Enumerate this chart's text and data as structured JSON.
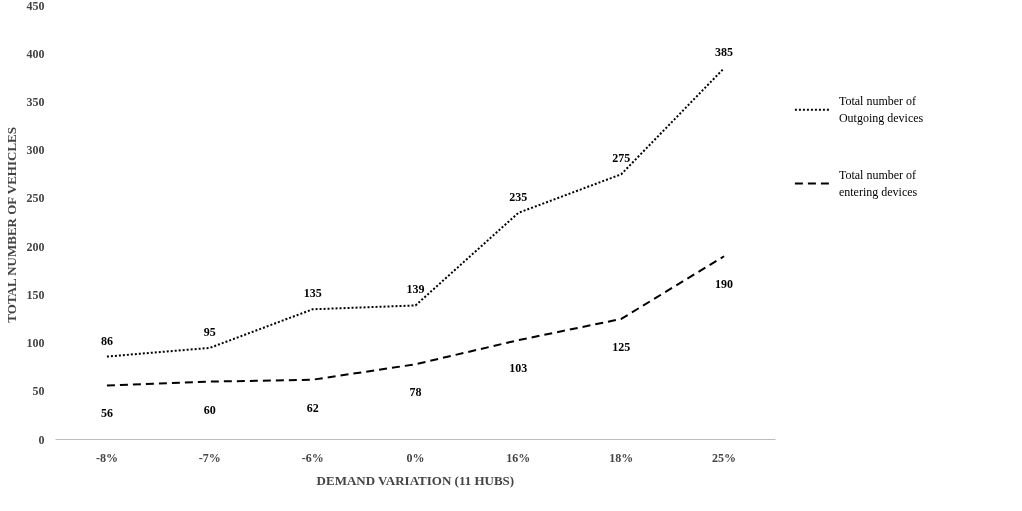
{
  "chart_data": {
    "type": "line",
    "xlabel": "DEMAND VARIATION (11 HUBS)",
    "ylabel": "TOTAL  NUMBER OF VEHICLES",
    "categories": [
      "-8%",
      "-7%",
      "-6%",
      "0%",
      "16%",
      "18%",
      "25%"
    ],
    "series": [
      {
        "name": "Total number of Outgoing devices",
        "color": "#000000",
        "line_style": "dotted",
        "values": [
          86,
          95,
          135,
          139,
          235,
          275,
          385
        ]
      },
      {
        "name": "Total number of entering devices",
        "color": "#000000",
        "line_style": "dashed",
        "values": [
          56,
          60,
          62,
          78,
          103,
          125,
          190
        ]
      }
    ],
    "ylim": [
      0,
      450
    ],
    "yticks": [
      0,
      50,
      100,
      150,
      200,
      250,
      300,
      350,
      400,
      450
    ],
    "grid": false,
    "legend": "right",
    "data_labels": true,
    "marker": "none"
  }
}
